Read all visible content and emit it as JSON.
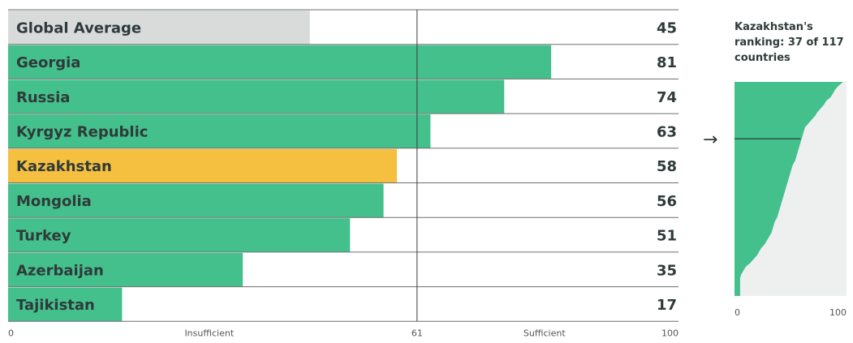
{
  "colors": {
    "country_bar": "#44c08c",
    "highlight_bar": "#f5bf3f",
    "average_bar": "#d9dbdb",
    "rank_background": "#eef0f0",
    "gridline": "#6b6f6f",
    "text": "#2f3a3a"
  },
  "chart_data": [
    {
      "type": "bar",
      "orientation": "horizontal",
      "categories": [
        "Global Average",
        "Georgia",
        "Russia",
        "Kyrgyz Republic",
        "Kazakhstan",
        "Mongolia",
        "Turkey",
        "Azerbaijan",
        "Tajikistan"
      ],
      "values": [
        45,
        81,
        74,
        63,
        58,
        56,
        51,
        35,
        17
      ],
      "value_labels": [
        "45",
        "81",
        "74",
        "63",
        "58",
        "56",
        "51",
        "35",
        "17"
      ],
      "highlight": "Kazakhstan",
      "xlim": [
        0,
        100
      ],
      "reference_line": 61,
      "tick_labels": [
        {
          "value": 0,
          "label": "0"
        },
        {
          "value": 30,
          "label": "Insufficient"
        },
        {
          "value": 61,
          "label": "61"
        },
        {
          "value": 80,
          "label": "Sufficient"
        },
        {
          "value": 100,
          "label": "100"
        }
      ]
    },
    {
      "type": "area",
      "orientation": "horizontal",
      "title": "Kazakhstan's ranking: 37 of 117 countries",
      "rank": 37,
      "total": 117,
      "xlim": [
        0,
        100
      ],
      "tick_labels": [
        "0",
        "100"
      ],
      "sorted_scores": [
        97,
        93,
        90,
        88,
        86,
        82,
        80,
        77,
        74,
        72,
        69,
        66,
        63,
        62,
        61,
        60,
        59,
        58,
        57,
        56,
        55,
        54,
        52,
        51,
        50,
        49,
        48,
        47,
        46,
        45,
        44,
        43,
        42,
        41,
        40,
        39,
        38,
        36,
        35,
        34,
        33,
        31,
        29,
        27,
        24,
        22,
        20,
        17,
        14,
        10,
        8,
        6,
        5
      ]
    }
  ]
}
